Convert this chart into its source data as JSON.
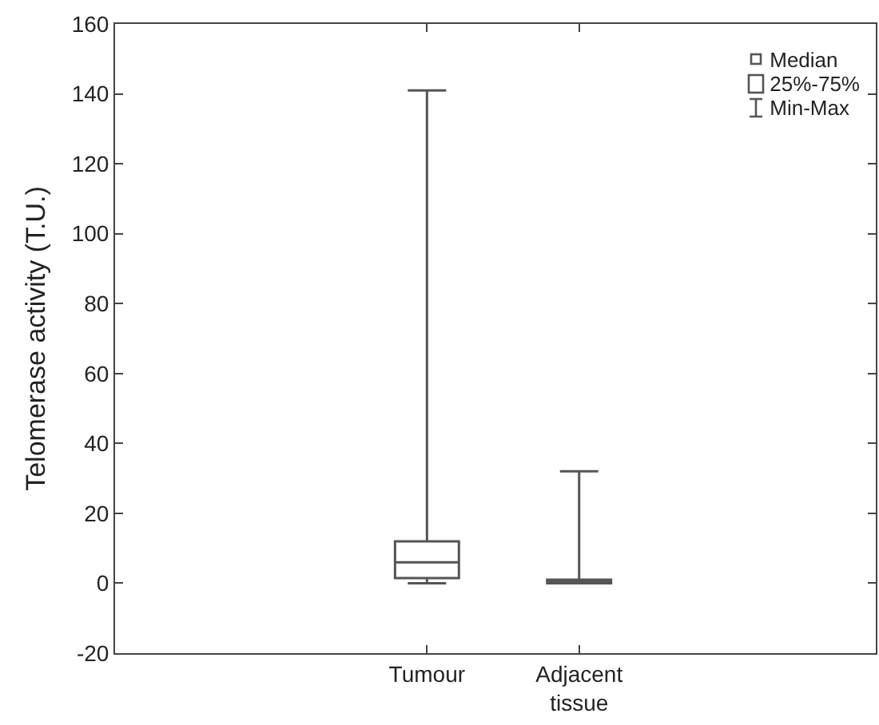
{
  "chart_data": {
    "type": "box",
    "ylabel": "Telomerase activity (T.U.)",
    "categories": [
      "Tumour",
      "Adjacent\ntissue"
    ],
    "boxes": [
      {
        "low": 0,
        "q1": 1.5,
        "median": 6,
        "q3": 12,
        "high": 141
      },
      {
        "low": 0,
        "q1": 0,
        "median": 0,
        "q3": 1,
        "high": 32
      }
    ],
    "color": "#555555",
    "ylim": [
      -20,
      160
    ],
    "yticks": [
      -20,
      0,
      20,
      40,
      60,
      80,
      100,
      120,
      140,
      160
    ],
    "grid": false,
    "annotations": [
      "Median",
      "25%-75%",
      "Min-Max"
    ]
  }
}
